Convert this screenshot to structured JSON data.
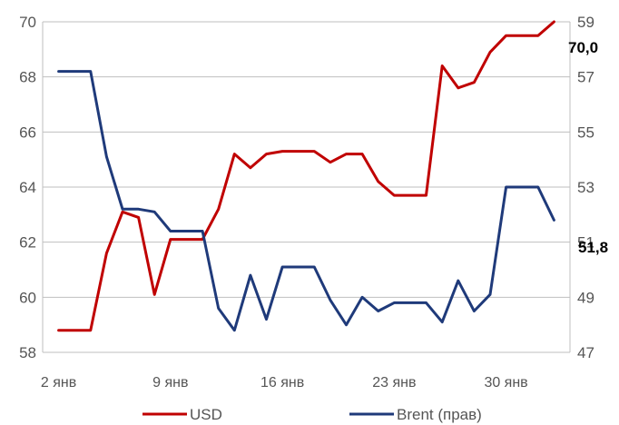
{
  "chart_data": {
    "type": "line",
    "x": [
      2,
      3,
      4,
      5,
      6,
      7,
      8,
      9,
      10,
      11,
      12,
      13,
      14,
      15,
      16,
      17,
      18,
      19,
      20,
      21,
      22,
      23,
      24,
      25,
      26,
      27,
      28,
      29,
      30,
      31,
      32,
      33
    ],
    "xticks": [
      2,
      9,
      16,
      23,
      30
    ],
    "xtick_labels": [
      "2 янв",
      "9 янв",
      "16 янв",
      "23 янв",
      "30 янв"
    ],
    "xlim": [
      1,
      34
    ],
    "series": [
      {
        "name": "USD",
        "axis": "left",
        "color": "#c00000",
        "values": [
          58.8,
          58.8,
          58.8,
          61.6,
          63.1,
          62.9,
          60.1,
          62.1,
          62.1,
          62.1,
          63.2,
          65.2,
          64.7,
          65.2,
          65.3,
          65.3,
          65.3,
          64.9,
          65.2,
          65.2,
          64.2,
          63.7,
          63.7,
          63.7,
          68.4,
          67.6,
          67.8,
          68.9,
          69.5,
          69.5,
          69.5,
          70.0
        ]
      },
      {
        "name": "Brent (прав)",
        "axis": "right",
        "color": "#1f3a7a",
        "values": [
          57.2,
          57.2,
          57.2,
          54.1,
          52.2,
          52.2,
          52.1,
          51.4,
          51.4,
          51.4,
          48.6,
          47.8,
          49.8,
          48.2,
          50.1,
          50.1,
          50.1,
          48.9,
          48.0,
          49.0,
          48.5,
          48.8,
          48.8,
          48.8,
          48.1,
          49.6,
          48.5,
          49.1,
          53.0,
          53.0,
          53.0,
          51.8
        ]
      }
    ],
    "y_left": {
      "lim": [
        58,
        70
      ],
      "ticks": [
        58,
        60,
        62,
        64,
        66,
        68,
        70
      ]
    },
    "y_right": {
      "lim": [
        47,
        59
      ],
      "ticks": [
        47,
        49,
        51,
        53,
        55,
        57,
        59
      ]
    },
    "end_labels": {
      "usd": "70,0",
      "brent": "51,8"
    },
    "grid": true,
    "legend_position": "bottom"
  }
}
